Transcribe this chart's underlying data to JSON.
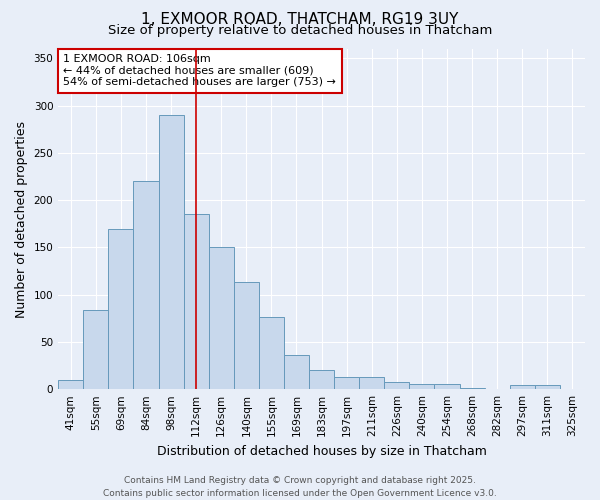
{
  "title_line1": "1, EXMOOR ROAD, THATCHAM, RG19 3UY",
  "title_line2": "Size of property relative to detached houses in Thatcham",
  "xlabel": "Distribution of detached houses by size in Thatcham",
  "ylabel": "Number of detached properties",
  "categories": [
    "41sqm",
    "55sqm",
    "69sqm",
    "84sqm",
    "98sqm",
    "112sqm",
    "126sqm",
    "140sqm",
    "155sqm",
    "169sqm",
    "183sqm",
    "197sqm",
    "211sqm",
    "226sqm",
    "240sqm",
    "254sqm",
    "268sqm",
    "282sqm",
    "297sqm",
    "311sqm",
    "325sqm"
  ],
  "values": [
    10,
    84,
    170,
    220,
    290,
    185,
    150,
    113,
    76,
    36,
    20,
    13,
    13,
    8,
    5,
    5,
    1,
    0,
    4,
    4,
    0
  ],
  "bar_color": "#c8d8ec",
  "bar_edge_color": "#6699bb",
  "red_line_index": 5,
  "ylim": [
    0,
    360
  ],
  "yticks": [
    0,
    50,
    100,
    150,
    200,
    250,
    300,
    350
  ],
  "annotation_text": "1 EXMOOR ROAD: 106sqm\n← 44% of detached houses are smaller (609)\n54% of semi-detached houses are larger (753) →",
  "annotation_box_color": "#ffffff",
  "annotation_box_edge": "#cc0000",
  "footer_line1": "Contains HM Land Registry data © Crown copyright and database right 2025.",
  "footer_line2": "Contains public sector information licensed under the Open Government Licence v3.0.",
  "background_color": "#e8eef8",
  "grid_color": "#ffffff",
  "title_fontsize": 11,
  "subtitle_fontsize": 9.5,
  "axis_label_fontsize": 9,
  "tick_fontsize": 7.5,
  "annotation_fontsize": 8,
  "footer_fontsize": 6.5
}
